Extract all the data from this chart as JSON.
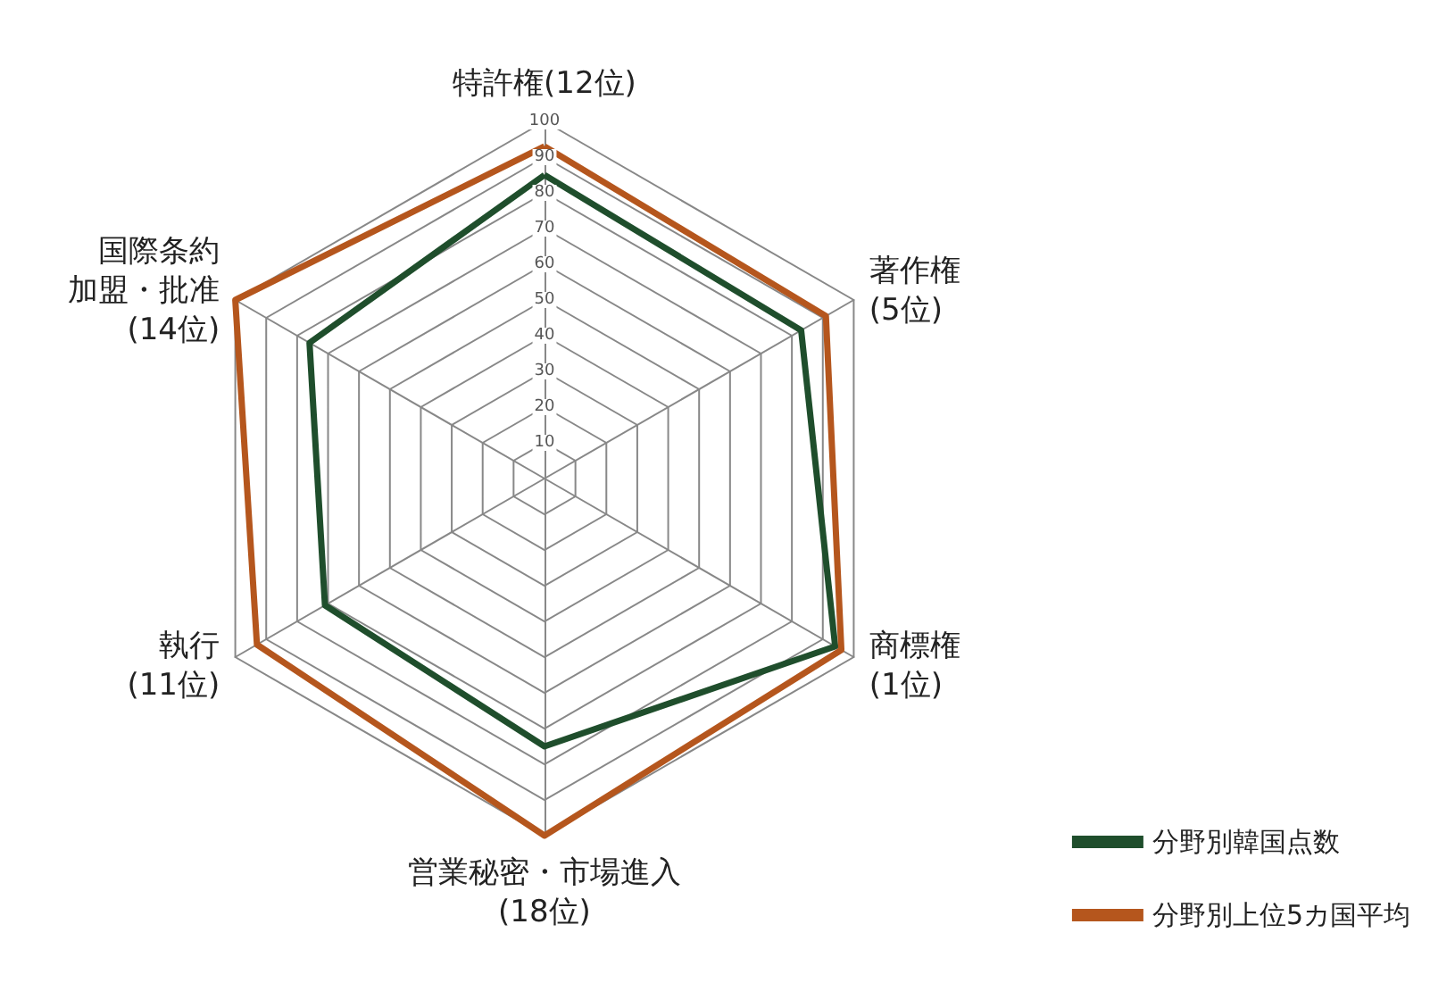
{
  "chart_data": {
    "type": "radar",
    "categories": [
      "特許権(12位)",
      "著作権\n(5位)",
      "商標権\n(1位)",
      "営業秘密・市場進入\n(18位)",
      "執行\n(11位)",
      "国際条約加盟・批准\n(14位)"
    ],
    "series": [
      {
        "name": "分野別韓国点数",
        "color": "#1f4e2c",
        "values": [
          85,
          83,
          94,
          75,
          71,
          76
        ]
      },
      {
        "name": "分野別上位5カ国平均",
        "color": "#b5561d",
        "values": [
          93,
          91,
          96,
          100,
          93,
          100
        ]
      }
    ],
    "ylim": [
      0,
      100
    ],
    "yticks": [
      10,
      20,
      30,
      40,
      50,
      60,
      70,
      80,
      90,
      100
    ],
    "legend": "bottom right",
    "grid": true,
    "marker": "none",
    "line_style": "solid"
  }
}
